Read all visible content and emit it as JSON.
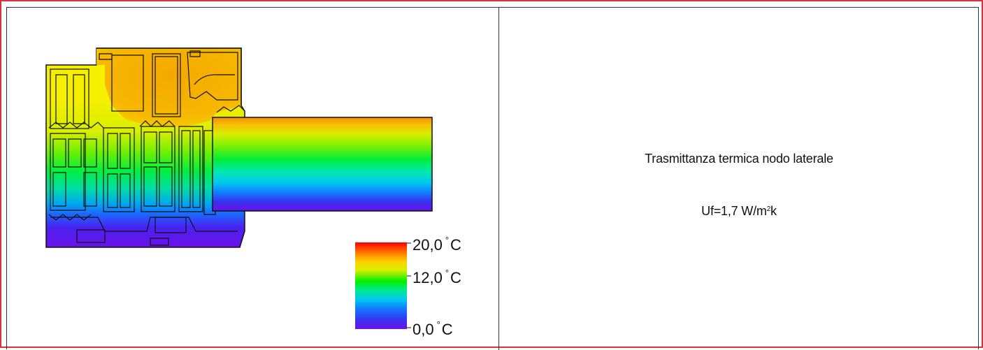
{
  "diagram": {
    "legend": {
      "max_label": "20,0",
      "mid_label": "12,0",
      "min_label": "0,0",
      "unit": "C",
      "degree": "°"
    }
  },
  "info": {
    "title": "Trasmittanza termica nodo laterale",
    "uf_text": "Uf=1,7 W/m",
    "uf_sup": "2",
    "uf_unit_tail": "k"
  },
  "colors": {
    "border": "#d9323b",
    "hot": "#ff0000",
    "warm": "#f7a900",
    "mid": "#00ee33",
    "cold": "#6a11e8"
  }
}
